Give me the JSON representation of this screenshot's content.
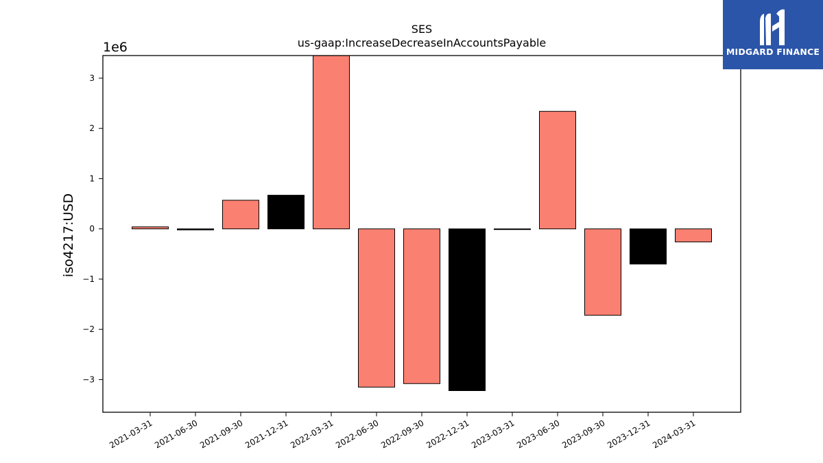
{
  "chart_data": {
    "type": "bar",
    "title": "SES",
    "subtitle": "us-gaap:IncreaseDecreaseInAccountsPayable",
    "ylabel": "iso4217:USD",
    "xlabel": "",
    "offset_label": "1e6",
    "scale": 1000000,
    "ylim": [
      -3.65,
      3.45
    ],
    "yticks": [
      -3,
      -2,
      -1,
      0,
      1,
      2,
      3
    ],
    "ytick_labels": [
      "−3",
      "−2",
      "−1",
      "0",
      "1",
      "2",
      "3"
    ],
    "categories": [
      "2021-03-31",
      "2021-06-30",
      "2021-09-30",
      "2021-12-31",
      "2022-03-31",
      "2022-06-30",
      "2022-09-30",
      "2022-12-31",
      "2023-03-31",
      "2023-06-30",
      "2023-09-30",
      "2023-12-31",
      "2024-03-31"
    ],
    "values": [
      0.04,
      -0.02,
      0.57,
      0.67,
      3.45,
      -3.15,
      -3.08,
      -3.22,
      -0.01,
      2.34,
      -1.72,
      -0.7,
      -0.26
    ],
    "colors": [
      "#fa8072",
      "#000000",
      "#fa8072",
      "#000000",
      "#fa8072",
      "#fa8072",
      "#fa8072",
      "#000000",
      "#000000",
      "#fa8072",
      "#fa8072",
      "#000000",
      "#fa8072"
    ],
    "grid": false,
    "legend": "none"
  },
  "logo": {
    "text": "MIDGARD FINANCE",
    "background": "#2b55a8"
  }
}
